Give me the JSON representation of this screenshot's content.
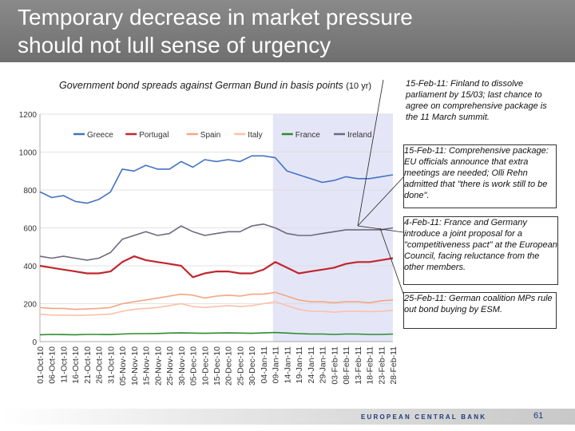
{
  "slide": {
    "title_line1": "Temporary decrease in market pressure",
    "title_line2": "should not lull sense of urgency",
    "footer_label": "EUROPEAN CENTRAL BANK",
    "page_number": "61"
  },
  "chart_data": {
    "type": "line",
    "title": "Government bond spreads against German Bund in basis points",
    "title_suffix": "(10 yr)",
    "ylim": [
      0,
      1200
    ],
    "yticks": [
      "0",
      "200",
      "400",
      "600",
      "800",
      "1000",
      "1200"
    ],
    "x_labels": [
      "01-Oct-10",
      "06-Oct-10",
      "11-Oct-10",
      "16-Oct-10",
      "21-Oct-10",
      "26-Oct-10",
      "31-Oct-10",
      "05-Nov-10",
      "10-Nov-10",
      "15-Nov-10",
      "20-Nov-10",
      "25-Nov-10",
      "30-Nov-10",
      "05-Dec-10",
      "10-Dec-10",
      "15-Dec-10",
      "20-Dec-10",
      "25-Dec-10",
      "30-Dec-10",
      "04-Jan-11",
      "09-Jan-11",
      "14-Jan-11",
      "19-Jan-11",
      "24-Jan-11",
      "29-Jan-11",
      "03-Feb-11",
      "08-Feb-11",
      "13-Feb-11",
      "18-Feb-11",
      "23-Feb-11",
      "28-Feb-11"
    ],
    "shaded_from": "08-Jan-11",
    "shaded_to": "28-Feb-11",
    "legend_position": "top",
    "series": [
      {
        "name": "Greece",
        "color": "#4472c4",
        "values": [
          790,
          760,
          770,
          740,
          730,
          750,
          790,
          910,
          900,
          930,
          910,
          910,
          950,
          920,
          960,
          950,
          960,
          950,
          980,
          980,
          970,
          900,
          880,
          860,
          840,
          850,
          870,
          860,
          860,
          870,
          880
        ]
      },
      {
        "name": "Portugal",
        "color": "#c0272d",
        "values": [
          400,
          390,
          380,
          370,
          360,
          360,
          370,
          420,
          450,
          430,
          420,
          410,
          400,
          340,
          360,
          370,
          370,
          360,
          360,
          380,
          420,
          390,
          360,
          370,
          380,
          390,
          410,
          420,
          420,
          430,
          440
        ]
      },
      {
        "name": "Spain",
        "color": "#f4a582",
        "values": [
          180,
          175,
          175,
          170,
          172,
          175,
          180,
          200,
          210,
          220,
          230,
          240,
          250,
          245,
          230,
          240,
          245,
          240,
          250,
          250,
          260,
          240,
          220,
          210,
          210,
          205,
          210,
          210,
          205,
          215,
          220
        ]
      },
      {
        "name": "Italy",
        "color": "#fbc0a8",
        "values": [
          145,
          140,
          140,
          138,
          140,
          142,
          145,
          160,
          170,
          175,
          180,
          190,
          200,
          185,
          180,
          185,
          190,
          185,
          190,
          200,
          210,
          190,
          170,
          160,
          160,
          155,
          160,
          160,
          158,
          160,
          165
        ]
      },
      {
        "name": "France",
        "color": "#2e8b2e",
        "values": [
          36,
          38,
          37,
          36,
          38,
          38,
          37,
          40,
          42,
          42,
          43,
          45,
          46,
          45,
          44,
          45,
          46,
          45,
          44,
          46,
          48,
          45,
          42,
          40,
          40,
          38,
          40,
          40,
          38,
          38,
          40
        ]
      },
      {
        "name": "Ireland",
        "color": "#6b6b80",
        "values": [
          450,
          440,
          450,
          440,
          430,
          440,
          470,
          540,
          560,
          580,
          560,
          570,
          610,
          580,
          560,
          570,
          580,
          580,
          610,
          620,
          600,
          570,
          560,
          560,
          570,
          580,
          590,
          590,
          590,
          590,
          600
        ]
      }
    ]
  },
  "annotations": [
    {
      "id": "ann1",
      "text": "15-Feb-11: Finland to dissolve parliament by 15/03; last chance to agree on comprehensive package is the 11 March summit."
    },
    {
      "id": "ann2",
      "text": "15-Feb-11: Comprehensive package: EU officials announce that extra meetings are needed; Olli Rehn admitted that \"there is work still to be done\"."
    },
    {
      "id": "ann3",
      "text": "4-Feb-11: France and Germany introduce a joint proposal for a \"competitiveness pact\" at the European Council, facing reluctance from the other members."
    },
    {
      "id": "ann4",
      "text": "25-Feb-11: German coalition MPs rule out bond buying by ESM."
    }
  ]
}
